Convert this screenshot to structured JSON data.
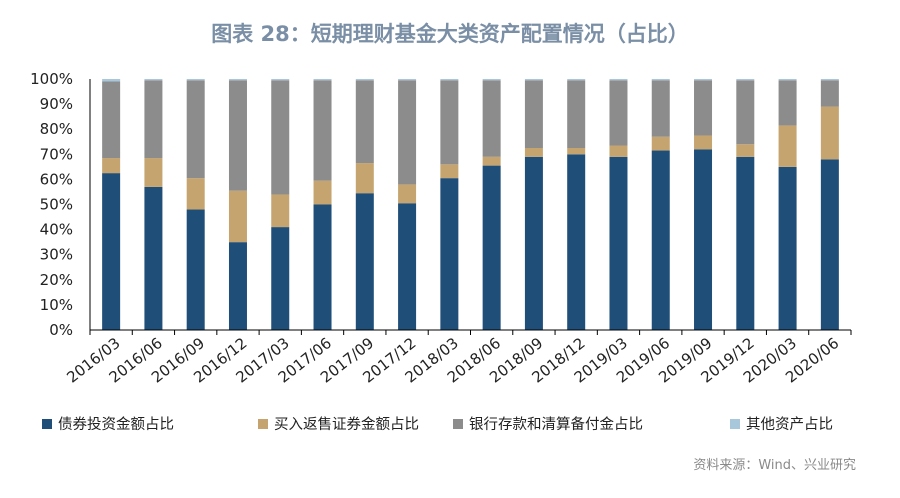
{
  "chart_data": {
    "type": "bar",
    "stacked": true,
    "title": "图表 28：短期理财基金大类资产配置情况（占比）",
    "categories": [
      "2016/03",
      "2016/06",
      "2016/09",
      "2016/12",
      "2017/03",
      "2017/06",
      "2017/09",
      "2017/12",
      "2018/03",
      "2018/06",
      "2018/09",
      "2018/12",
      "2019/03",
      "2019/06",
      "2019/09",
      "2019/12",
      "2020/03",
      "2020/06"
    ],
    "series": [
      {
        "name": "债券投资金额占比",
        "color": "#1f4e79",
        "values": [
          62.5,
          57,
          48,
          35,
          41,
          50,
          54.5,
          50.5,
          60.5,
          65.5,
          69,
          70,
          69,
          71.5,
          72,
          69,
          65,
          68
        ]
      },
      {
        "name": "买入返售证券金额占比",
        "color": "#c5a46f",
        "values": [
          6,
          11.5,
          12.5,
          20.5,
          13,
          9.5,
          12,
          7.5,
          5.5,
          3.5,
          3.5,
          2.5,
          4.5,
          5.5,
          5.5,
          5,
          16.5,
          21
        ]
      },
      {
        "name": "银行存款和清算备付金占比",
        "color": "#8c8c8c",
        "values": [
          30.5,
          31,
          39,
          44,
          45.5,
          40,
          33,
          41.5,
          33.5,
          30.5,
          27,
          27,
          26,
          22.5,
          22,
          25.5,
          18,
          10.5
        ]
      },
      {
        "name": "其他资产占比",
        "color": "#a9c7da",
        "values": [
          1,
          0.5,
          0.5,
          0.5,
          0.5,
          0.5,
          0.5,
          0.5,
          0.5,
          0.5,
          0.5,
          0.5,
          0.5,
          0.5,
          0.5,
          0.5,
          0.5,
          0.5
        ]
      }
    ],
    "y_ticks": [
      "0%",
      "10%",
      "20%",
      "30%",
      "40%",
      "50%",
      "60%",
      "70%",
      "80%",
      "90%",
      "100%"
    ],
    "ylim": [
      0,
      100
    ],
    "grid": false,
    "legend_position": "bottom",
    "source": "资料来源：Wind、兴业研究"
  }
}
